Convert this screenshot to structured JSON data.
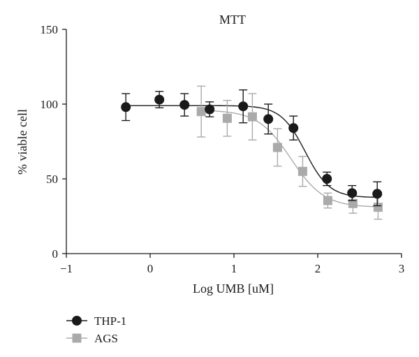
{
  "chart_data": {
    "type": "scatter",
    "title": "MTT",
    "xlabel": "Log UMB [uM]",
    "ylabel": "% viable cell",
    "xlim": [
      -1,
      3
    ],
    "ylim": [
      0,
      150
    ],
    "xticks": [
      -1,
      0,
      1,
      2,
      3
    ],
    "xtick_labels": [
      "−1",
      "0",
      "1",
      "2",
      "3"
    ],
    "yticks": [
      0,
      50,
      100,
      150
    ],
    "ytick_labels": [
      "0",
      "50",
      "100",
      "150"
    ],
    "grid": false,
    "legend_position": "bottom-left",
    "series": [
      {
        "name": "THP-1",
        "marker": "circle",
        "color": "#1a1a1a",
        "x": [
          -0.29,
          0.11,
          0.41,
          0.71,
          1.11,
          1.41,
          1.71,
          2.11,
          2.41,
          2.71
        ],
        "y": [
          98,
          103,
          99.5,
          96.5,
          98.5,
          90,
          84,
          50,
          40.5,
          40
        ],
        "err": [
          9,
          5.5,
          7.5,
          5,
          11,
          10,
          8,
          4.5,
          5,
          8
        ],
        "fit": {
          "top": 99,
          "bottom": 37.5,
          "logEC50": 1.85,
          "hill": 3.0,
          "x_range": [
            -0.29,
            2.73
          ]
        }
      },
      {
        "name": "AGS",
        "marker": "square",
        "color": "#aaaaaa",
        "x": [
          0.61,
          0.92,
          1.22,
          1.52,
          1.82,
          2.12,
          2.42,
          2.72
        ],
        "y": [
          95,
          90.5,
          91.5,
          71,
          55,
          35.5,
          33.5,
          31
        ],
        "err": [
          17,
          12,
          15.5,
          12.5,
          10,
          5,
          6.5,
          8
        ],
        "fit": {
          "top": 96,
          "bottom": 31,
          "logEC50": 1.68,
          "hill": 2.2,
          "x_range": [
            0.61,
            2.73
          ]
        }
      }
    ]
  }
}
